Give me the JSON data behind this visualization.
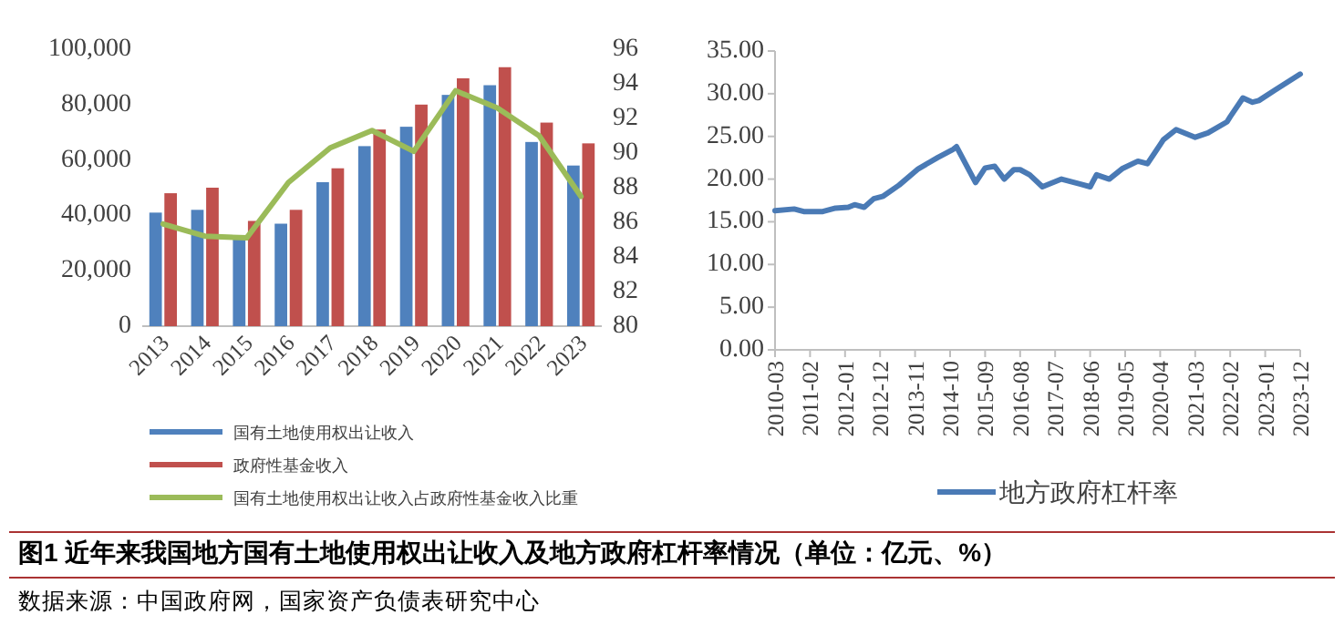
{
  "chart_data": [
    {
      "type": "bar",
      "title": "图1  近年来我国地方国有土地使用权出让收入及地方政府杠杆率情况（单位：亿元、%）",
      "annotations": [
        "数据来源：中国政府网，国家资产负债表研究中心"
      ],
      "categories": [
        "2013",
        "2014",
        "2015",
        "2016",
        "2017",
        "2018",
        "2019",
        "2020",
        "2021",
        "2022",
        "2023"
      ],
      "series": [
        {
          "name": "国有土地使用权出让收入",
          "color": "#4f81bd",
          "values": [
            41000,
            42000,
            32000,
            37000,
            52000,
            65000,
            72000,
            83500,
            87000,
            66500,
            58000
          ]
        },
        {
          "name": "政府性基金收入",
          "color": "#c0504d",
          "values": [
            48000,
            50000,
            38000,
            42000,
            57000,
            71000,
            80000,
            89500,
            93500,
            73500,
            66000
          ]
        },
        {
          "name": "国有土地使用权出让收入占政府性基金收入比重",
          "type": "line",
          "axis": "y2",
          "color": "#9bbb59",
          "values": [
            85.9,
            85.2,
            85.1,
            88.3,
            90.3,
            91.3,
            90.1,
            93.6,
            92.6,
            91.0,
            87.5
          ]
        }
      ],
      "ylim": [
        0,
        100000
      ],
      "yticks": [
        0,
        {
          "value": 20000,
          "label": "20,000"
        },
        {
          "value": 40000,
          "label": "40,000"
        },
        {
          "value": 60000,
          "label": "60,000"
        },
        {
          "value": 80000,
          "label": "80,000"
        },
        {
          "value": 100000,
          "label": "100,000"
        }
      ],
      "y2lim": [
        80,
        96
      ],
      "y2ticks": [
        80,
        82,
        84,
        86,
        88,
        90,
        92,
        94,
        96
      ],
      "grid": false,
      "legend": "bottom"
    },
    {
      "type": "line",
      "legend": "bottom",
      "grid": false,
      "x": [
        "2010-03",
        "2010-09",
        "2010-12",
        "2011-06",
        "2011-10",
        "2012-02",
        "2012-04",
        "2012-07",
        "2012-10",
        "2013-01",
        "2013-06",
        "2013-12",
        "2014-06",
        "2014-11",
        "2014-12",
        "2015-06",
        "2015-09",
        "2015-12",
        "2016-03",
        "2016-06",
        "2016-08",
        "2016-11",
        "2017-03",
        "2017-09",
        "2018-03",
        "2018-06",
        "2018-08",
        "2018-12",
        "2019-04",
        "2019-09",
        "2019-12",
        "2020-05",
        "2020-09",
        "2021-03",
        "2021-07",
        "2022-01",
        "2022-02",
        "2022-06",
        "2022-09",
        "2022-11",
        "2023-04",
        "2023-12"
      ],
      "series": [
        {
          "name": "地方政府杠杆率",
          "color": "#4a7ab5",
          "values": [
            16.3,
            16.5,
            16.2,
            16.2,
            16.6,
            16.7,
            17.0,
            16.7,
            17.7,
            18.0,
            19.3,
            21.2,
            22.5,
            23.5,
            23.8,
            19.6,
            21.3,
            21.5,
            20.0,
            21.1,
            21.1,
            20.5,
            19.1,
            20.0,
            19.4,
            19.1,
            20.5,
            20.0,
            21.2,
            22.1,
            21.8,
            24.6,
            25.8,
            24.9,
            25.4,
            26.7,
            27.3,
            29.5,
            29.0,
            29.2,
            30.4,
            32.3
          ]
        }
      ],
      "xlim": [
        "2010-03",
        "2023-12"
      ],
      "xticks": [
        "2010-03",
        "2011-02",
        "2012-01",
        "2012-12",
        "2013-11",
        "2014-10",
        "2015-09",
        "2016-08",
        "2017-07",
        "2018-06",
        "2019-05",
        "2020-04",
        "2021-03",
        "2022-02",
        "2023-01",
        "2023-12"
      ],
      "ylim": [
        0,
        35
      ],
      "yticks": [
        {
          "value": 0,
          "label": "0.00"
        },
        {
          "value": 5,
          "label": "5.00"
        },
        {
          "value": 10,
          "label": "10.00"
        },
        {
          "value": 15,
          "label": "15.00"
        },
        {
          "value": 20,
          "label": "20.00"
        },
        {
          "value": 25,
          "label": "25.00"
        },
        {
          "value": 30,
          "label": "30.00"
        },
        {
          "value": 35,
          "label": "35.00"
        }
      ]
    }
  ]
}
